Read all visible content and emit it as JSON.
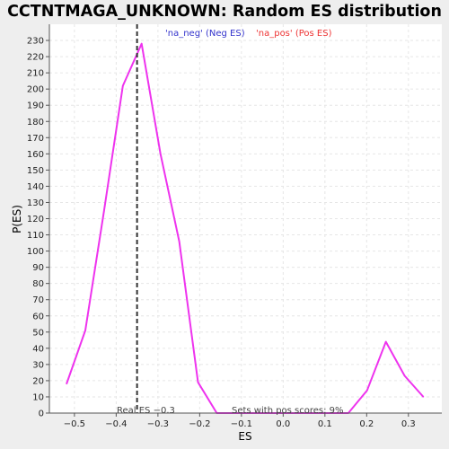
{
  "chart_data": {
    "type": "line",
    "title": "CCTNTMAGA_UNKNOWN: Random ES distribution",
    "xlabel": "ES",
    "ylabel": "P(ES)",
    "xlim": [
      -0.56,
      0.38
    ],
    "ylim": [
      0,
      240
    ],
    "x_ticks": [
      -0.5,
      -0.4,
      -0.3,
      -0.2,
      -0.1,
      0.0,
      0.1,
      0.2,
      0.3
    ],
    "x_tick_labels": [
      "−0.5",
      "−0.4",
      "−0.3",
      "−0.2",
      "−0.1",
      "0.0",
      "0.1",
      "0.2",
      "0.3"
    ],
    "y_ticks": [
      0,
      10,
      20,
      30,
      40,
      50,
      60,
      70,
      80,
      90,
      100,
      110,
      120,
      130,
      140,
      150,
      160,
      170,
      180,
      190,
      200,
      210,
      220,
      230
    ],
    "grid": true,
    "series": [
      {
        "name": "",
        "color": "#ee33ee",
        "x": [
          -0.519,
          -0.474,
          -0.429,
          -0.384,
          -0.339,
          -0.294,
          -0.249,
          -0.204,
          -0.159,
          -0.114,
          -0.069,
          -0.024,
          0.021,
          0.066,
          0.111,
          0.156,
          0.201,
          0.246,
          0.291,
          0.336
        ],
        "y": [
          18,
          51,
          125,
          202,
          228,
          160,
          106,
          19,
          0,
          0,
          0,
          0,
          0,
          0,
          0,
          0,
          14,
          44,
          23,
          10
        ]
      }
    ],
    "real_es": {
      "value": -0.35,
      "label": "Real ES −0.3",
      "color": "#333333"
    },
    "legend": [
      {
        "label": "'na_neg' (Neg ES)",
        "color": "#3333cc"
      },
      {
        "label": "'na_pos' (Pos ES)",
        "color": "#ee3333"
      }
    ],
    "annotation": "Sets with pos scores: 9%"
  }
}
